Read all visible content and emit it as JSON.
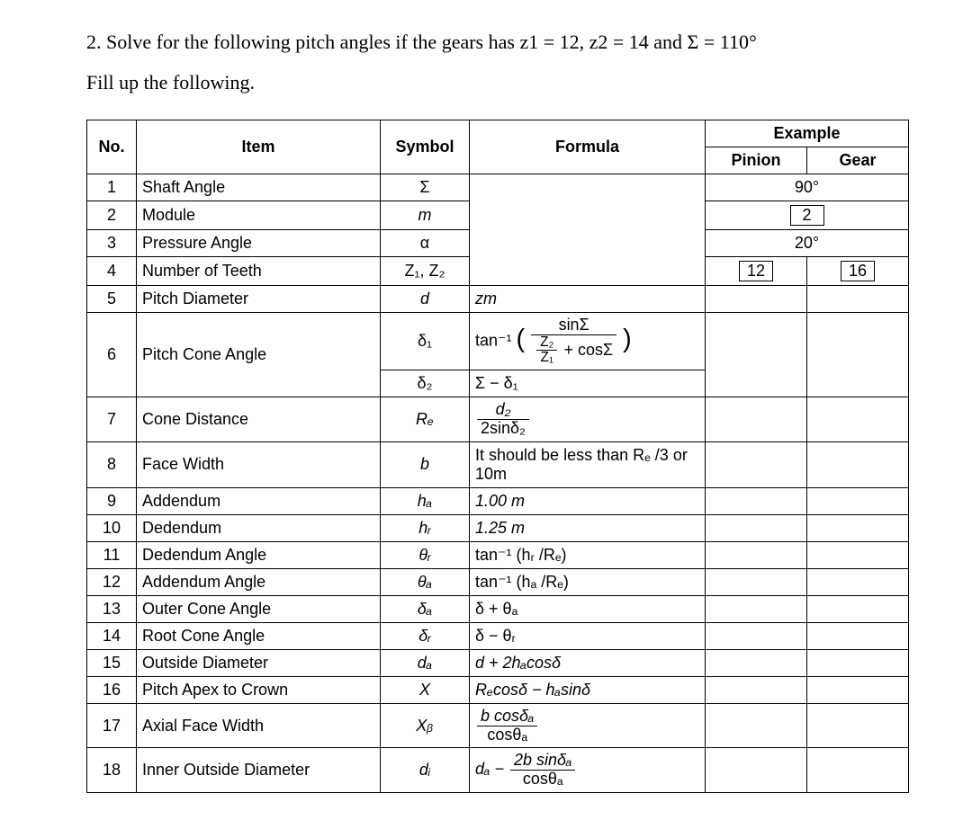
{
  "question": {
    "text": "2. Solve for the following pitch angles if the gears has z1 = 12, z2 = 14 and Σ = 110°",
    "fill_text": "Fill up the following."
  },
  "headers": {
    "no": "No.",
    "item": "Item",
    "symbol": "Symbol",
    "formula": "Formula",
    "example": "Example",
    "pinion": "Pinion",
    "gear": "Gear"
  },
  "rows": {
    "r1": {
      "no": "1",
      "item": "Shaft Angle",
      "symbol": "Σ",
      "example_merged": "90°"
    },
    "r2": {
      "no": "2",
      "item": "Module",
      "symbol": "m",
      "example_box": "2"
    },
    "r3": {
      "no": "3",
      "item": "Pressure Angle",
      "symbol": "α",
      "example_merged": "20°"
    },
    "r4": {
      "no": "4",
      "item": "Number of Teeth",
      "symbol": "Z₁, Z₂",
      "example_pinion": "12",
      "example_gear": "16"
    },
    "r5": {
      "no": "5",
      "item": "Pitch Diameter",
      "symbol": "d",
      "formula": "zm"
    },
    "r6": {
      "no": "6",
      "item": "Pitch Cone Angle",
      "symbol1": "δ₁",
      "symbol2": "δ₂",
      "formula2": "Σ − δ₁",
      "tan_label": "tan⁻¹",
      "frac_top": "sinΣ",
      "frac_bot_num": "Z₂",
      "frac_bot_den": "Z₁",
      "frac_bot_tail": " + cosΣ"
    },
    "r7": {
      "no": "7",
      "item": "Cone Distance",
      "symbol": "Rₑ",
      "frac_top": "d₂",
      "frac_bot": "2sinδ₂"
    },
    "r8": {
      "no": "8",
      "item": "Face Width",
      "symbol": "b",
      "formula": "It should be less than Rₑ /3 or 10m"
    },
    "r9": {
      "no": "9",
      "item": "Addendum",
      "symbol": "hₐ",
      "formula": "1.00 m"
    },
    "r10": {
      "no": "10",
      "item": "Dedendum",
      "symbol": "hᵣ",
      "formula": "1.25 m"
    },
    "r11": {
      "no": "11",
      "item": "Dedendum Angle",
      "symbol": "θᵣ",
      "formula": "tan⁻¹ (hᵣ /Rₑ)"
    },
    "r12": {
      "no": "12",
      "item": "Addendum Angle",
      "symbol": "θₐ",
      "formula": "tan⁻¹ (hₐ /Rₑ)"
    },
    "r13": {
      "no": "13",
      "item": "Outer Cone Angle",
      "symbol": "δₐ",
      "formula": "δ + θₐ"
    },
    "r14": {
      "no": "14",
      "item": "Root Cone Angle",
      "symbol": "δᵣ",
      "formula": "δ − θᵣ"
    },
    "r15": {
      "no": "15",
      "item": "Outside Diameter",
      "symbol": "dₐ",
      "formula": "d + 2hₐcosδ"
    },
    "r16": {
      "no": "16",
      "item": "Pitch Apex to Crown",
      "symbol": "X",
      "formula": "Rₑcosδ − hₐsinδ"
    },
    "r17": {
      "no": "17",
      "item": "Axial Face Width",
      "symbol": "Xᵦ",
      "frac_top": "b cosδₐ",
      "frac_bot": "cosθₐ"
    },
    "r18": {
      "no": "18",
      "item": "Inner Outside Diameter",
      "symbol": "dᵢ",
      "prefix": "dₐ − ",
      "frac_top": "2b sinδₐ",
      "frac_bot": "cosθₐ"
    }
  }
}
